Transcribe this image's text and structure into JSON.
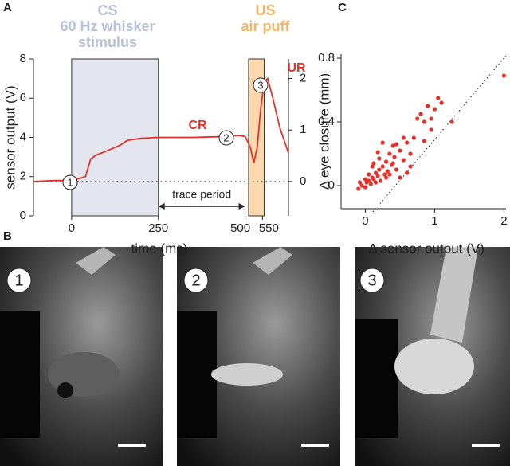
{
  "chart_data": [
    {
      "type": "line",
      "panel_label": "A",
      "x_label": "time (ms)",
      "y_label": "sensor output (V)",
      "xlim": [
        -110,
        625
      ],
      "xticks": [
        0,
        250,
        500,
        550
      ],
      "ylim": [
        0,
        8
      ],
      "yticks": [
        0,
        2,
        4,
        6,
        8
      ],
      "y2lim": [
        -0.667,
        2.38
      ],
      "y2ticks": [
        0,
        1,
        2
      ],
      "x": [
        -110,
        -50,
        0,
        40,
        55,
        70,
        100,
        140,
        160,
        200,
        250,
        350,
        450,
        480,
        500,
        515,
        525,
        535,
        545,
        555,
        565,
        580,
        600,
        625
      ],
      "series": [
        {
          "color": "#e8302a",
          "values": [
            1.75,
            1.8,
            1.8,
            2.0,
            2.9,
            3.1,
            3.3,
            3.6,
            3.85,
            3.95,
            4.0,
            4.0,
            4.05,
            4.1,
            4.05,
            3.5,
            2.7,
            3.5,
            5.5,
            6.8,
            7.0,
            6.0,
            4.5,
            3.2
          ]
        }
      ],
      "regions": [
        {
          "label_lines": [
            "CS",
            "60 Hz whisker",
            "stimulus"
          ],
          "x": [
            0,
            250
          ],
          "color": "#e3e6ee",
          "label_color": "#b7c1d9"
        },
        {
          "label_lines": [
            "US",
            "air puff"
          ],
          "x": [
            510,
            555
          ],
          "color": "#fbd8ad",
          "label_color": "#f5b462"
        }
      ],
      "trace_period": {
        "label": "trace period",
        "x": [
          250,
          500
        ]
      },
      "annotations": [
        "CR",
        "UR"
      ],
      "markers": [
        "1",
        "2",
        "3"
      ]
    },
    {
      "type": "scatter",
      "panel_label": "C",
      "x_label": "Δ sensor output (V)",
      "y_label": "Δ eye closure (mm)",
      "xlim": [
        -0.35,
        2.03
      ],
      "xticks": [
        0,
        1,
        2
      ],
      "ylim": [
        -0.145,
        0.825
      ],
      "yticks": [
        0,
        0.4,
        0.8
      ],
      "color": "#e8302a",
      "x": [
        -0.1,
        -0.05,
        0,
        0.02,
        0.05,
        0.08,
        0.1,
        0.12,
        0.15,
        0.18,
        0.2,
        0.22,
        0.25,
        0.28,
        0.3,
        0.32,
        0.35,
        0.38,
        0.4,
        0.42,
        0.45,
        0.5,
        0.55,
        0.6,
        0.65,
        0.7,
        0.75,
        0.8,
        0.85,
        0.9,
        0.95,
        1.0,
        1.05,
        1.1,
        1.25,
        2.0,
        0.1,
        0.05,
        0.15,
        0.0,
        -0.08,
        0.3,
        0.25,
        0.2,
        0.45,
        0.5,
        0.6,
        0.55,
        0.35,
        0.12,
        0.85,
        0.95,
        0.65,
        0.4,
        0.18
      ],
      "values": [
        -0.02,
        0,
        -0.01,
        0.02,
        0.03,
        0.01,
        0.05,
        0.04,
        0.08,
        0.06,
        0.1,
        0.03,
        0.12,
        0.07,
        0.15,
        0.09,
        0.2,
        0.13,
        0.25,
        0.18,
        0.1,
        0.22,
        0.16,
        0.27,
        0.12,
        0.3,
        0.42,
        0.45,
        0.4,
        0.5,
        0.35,
        0.48,
        0.55,
        0.52,
        0.4,
        0.69,
        0.12,
        0.07,
        0.02,
        0.04,
        0.02,
        0.05,
        0.27,
        0.17,
        0.26,
        0.05,
        0.08,
        0.3,
        0.07,
        0.14,
        0.28,
        0.42,
        0.2,
        0.14,
        0.21
      ]
    }
  ],
  "photos": {
    "panel_label": "B",
    "frames": [
      "1",
      "2",
      "3"
    ]
  }
}
